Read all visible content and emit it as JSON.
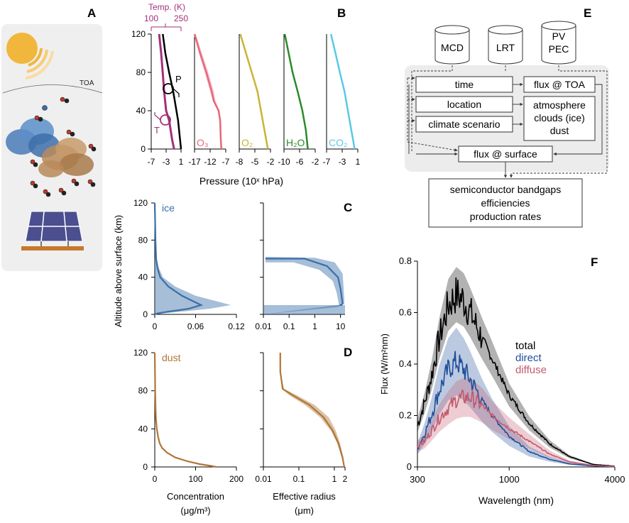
{
  "panel_letters": {
    "A": "A",
    "B": "B",
    "C": "C",
    "D": "D",
    "E": "E",
    "F": "F"
  },
  "colors": {
    "black": "#000000",
    "temp": "#a3307a",
    "o3": "#e8677a",
    "o2": "#c9b436",
    "h2o": "#2a8a2a",
    "co2": "#5bc8e6",
    "ice": "#3a6fa8",
    "dust": "#b07636",
    "direct": "#1f4e9a",
    "diffuse": "#c25a6e",
    "panel_bg": "#efefef",
    "box_bg": "#ececec"
  },
  "panel_A": {
    "toa_label": "TOA",
    "icons": [
      "sun-icon",
      "cloud-icon",
      "molecule-icon",
      "solar-panel-icon"
    ]
  },
  "shared": {
    "altitude_label": "Altitude above surface (km)"
  },
  "chart_data": [
    {
      "id": "B",
      "type": "line",
      "ylim": [
        0,
        120
      ],
      "yticks": [
        "0",
        "40",
        "80",
        "120"
      ],
      "xlabel": "Pressure (10ˣ hPa)",
      "temp_axis": {
        "title": "Temp. (K)",
        "ticks": [
          "100",
          "250"
        ],
        "xlim": [
          100,
          250
        ]
      },
      "markers": {
        "P": "P",
        "T": "T"
      },
      "subplots": [
        {
          "name": "",
          "ticks": [
            "-7",
            "-3",
            "1"
          ],
          "xlim": [
            -7,
            1
          ],
          "series": [
            {
              "name": "P",
              "color": "#000000",
              "x": [
                -3.9,
                -3.2,
                -2.2,
                -1.1,
                0.2,
                1.0
              ],
              "y": [
                120,
                100,
                80,
                60,
                30,
                0
              ]
            },
            {
              "name": "T",
              "color": "#a3307a",
              "temp": [
                140,
                150,
                158,
                165,
                175,
                190,
                205,
                215
              ],
              "y": [
                120,
                100,
                80,
                60,
                40,
                30,
                10,
                0
              ]
            }
          ]
        },
        {
          "name": "O₃",
          "ticks": [
            "-17",
            "-12",
            "-7"
          ],
          "xlim": [
            -17,
            -7
          ],
          "series": [
            {
              "name": "O₃",
              "color": "#e8677a",
              "x": [
                -17,
                -15.2,
                -13.2,
                -11.5,
                -10.8,
                -9.3,
                -8.8,
                -8.6,
                -8.4
              ],
              "y": [
                120,
                100,
                80,
                60,
                50,
                40,
                30,
                10,
                0
              ],
              "x_lo": [
                -17,
                -15.6,
                -13.8,
                -12.0,
                -11.2,
                -9.6,
                -9.0,
                -8.8,
                -8.6
              ],
              "x_hi": [
                -16.6,
                -14.6,
                -12.6,
                -10.8,
                -10.3,
                -9.0,
                -8.6,
                -8.4,
                -8.2
              ]
            }
          ]
        },
        {
          "name": "O₂",
          "ticks": [
            "-8",
            "-5",
            "-2"
          ],
          "xlim": [
            -8,
            -2
          ],
          "series": [
            {
              "name": "O₂",
              "color": "#c9b436",
              "x": [
                -7.8,
                -6.7,
                -5.6,
                -4.5,
                -3.5,
                -2.5
              ],
              "y": [
                120,
                100,
                80,
                60,
                30,
                0
              ]
            }
          ]
        },
        {
          "name": "H₂O",
          "ticks": [
            "-10",
            "-6",
            "-2"
          ],
          "xlim": [
            -10,
            -2
          ],
          "series": [
            {
              "name": "H₂O",
              "color": "#2a8a2a",
              "x": [
                -9.8,
                -8.8,
                -7.8,
                -6.5,
                -5.3,
                -4.4,
                -3.9
              ],
              "y": [
                120,
                100,
                80,
                60,
                40,
                20,
                0
              ]
            }
          ]
        },
        {
          "name": "CO₂",
          "ticks": [
            "-7",
            "-3",
            "1"
          ],
          "xlim": [
            -7,
            1
          ],
          "series": [
            {
              "name": "CO₂",
              "color": "#5bc8e6",
              "x": [
                -5.9,
                -4.7,
                -3.6,
                -2.4,
                -1.1,
                0.2
              ],
              "y": [
                120,
                100,
                80,
                60,
                30,
                0
              ]
            }
          ]
        }
      ]
    },
    {
      "id": "C",
      "type": "line",
      "series_label": "ice",
      "ylim": [
        0,
        120
      ],
      "yticks": [
        "0",
        "40",
        "80",
        "120"
      ],
      "subplots": [
        {
          "xscale": "linear",
          "xlim": [
            0,
            0.12
          ],
          "ticks": [
            "0",
            "0.06",
            "0.12"
          ],
          "series": [
            {
              "name": "ice",
              "color": "#3a6fa8",
              "x": [
                0,
                0.001,
                0.002,
                0.004,
                0.008,
                0.02,
                0.04,
                0.068,
                0.05,
                0.02,
                0.004,
                0
              ],
              "y": [
                120,
                80,
                60,
                50,
                40,
                30,
                20,
                10,
                6,
                3,
                1,
                0
              ],
              "x_hi": [
                0.001,
                0.002,
                0.003,
                0.006,
                0.012,
                0.03,
                0.06,
                0.112,
                0.08,
                0.04,
                0.01,
                0
              ]
            }
          ]
        },
        {
          "xscale": "log",
          "xlim": [
            0.01,
            15
          ],
          "ticks": [
            "0.01",
            "0.1",
            "1",
            "10"
          ],
          "tick_values": [
            0.01,
            0.1,
            1,
            10
          ],
          "series": [
            {
              "name": "ice",
              "color": "#3a6fa8",
              "x": [
                0.012,
                0.4,
                3,
                8,
                10,
                12,
                11,
                9
              ],
              "y": [
                60,
                60,
                52,
                40,
                28,
                12,
                10,
                10
              ],
              "x_lo": [
                0.012,
                0.15,
                1.5,
                5,
                7,
                9,
                0.01,
                0.01
              ],
              "x_hi": [
                0.012,
                1.0,
                6,
                12,
                13,
                14,
                14,
                14
              ],
              "y_hi": [
                62,
                61,
                56,
                44,
                32,
                16,
                11,
                11
              ],
              "y_lo": [
                56,
                56,
                48,
                36,
                24,
                8,
                0,
                0
              ]
            }
          ]
        }
      ]
    },
    {
      "id": "D",
      "type": "line",
      "series_label": "dust",
      "ylim": [
        0,
        120
      ],
      "yticks": [
        "0",
        "40",
        "80",
        "120"
      ],
      "subplots": [
        {
          "xscale": "linear",
          "xlim": [
            0,
            200
          ],
          "ticks": [
            "0",
            "100",
            "200"
          ],
          "xlabel": "Concentration",
          "xunit": "(μg/m³)",
          "series": [
            {
              "name": "dust",
              "color": "#b07636",
              "x": [
                0,
                0.5,
                1,
                2,
                3,
                5,
                8,
                12,
                18,
                30,
                50,
                80,
                110,
                140,
                150
              ],
              "y": [
                120,
                100,
                80,
                60,
                50,
                40,
                32,
                25,
                20,
                15,
                10,
                6,
                3,
                1,
                0
              ]
            }
          ]
        },
        {
          "xscale": "log",
          "xlim": [
            0.01,
            2
          ],
          "ticks": [
            "0.01",
            "0.1",
            "1",
            "2"
          ],
          "tick_values": [
            0.01,
            0.1,
            1,
            2
          ],
          "xlabel": "Effective radius",
          "xunit": "(μm)",
          "series": [
            {
              "name": "dust",
              "color": "#b07636",
              "x": [
                0.03,
                0.03,
                0.035,
                0.07,
                0.2,
                0.5,
                0.9,
                1.3,
                1.7,
                1.9
              ],
              "y": [
                120,
                100,
                82,
                75,
                65,
                52,
                38,
                25,
                10,
                0
              ],
              "x_lo": [
                0.03,
                0.03,
                0.033,
                0.055,
                0.15,
                0.4,
                0.8,
                1.2,
                1.6,
                1.9
              ],
              "x_hi": [
                0.03,
                0.03,
                0.038,
                0.09,
                0.28,
                0.7,
                1.1,
                1.45,
                1.8,
                1.9
              ]
            }
          ]
        }
      ]
    },
    {
      "id": "F",
      "type": "line",
      "xscale": "log",
      "xlim": [
        300,
        4000
      ],
      "ylim": [
        0,
        0.8
      ],
      "xticks": [
        "300",
        "1000",
        "4000"
      ],
      "xtick_values": [
        300,
        1000,
        4000
      ],
      "yticks": [
        "0",
        "0.2",
        "0.4",
        "0.6",
        "0.8"
      ],
      "ytick_values": [
        0,
        0.2,
        0.4,
        0.6,
        0.8
      ],
      "xlabel": "Wavelength (nm)",
      "ylabel": "Flux (W/m²nm)",
      "legend": [
        "total",
        "direct",
        "diffuse"
      ],
      "series": [
        {
          "name": "total",
          "color": "#000000",
          "x": [
            300,
            330,
            360,
            400,
            450,
            500,
            550,
            600,
            700,
            800,
            1000,
            1300,
            1700,
            2200,
            3000,
            4000
          ],
          "y": [
            0.16,
            0.25,
            0.35,
            0.5,
            0.63,
            0.67,
            0.65,
            0.6,
            0.5,
            0.42,
            0.28,
            0.17,
            0.09,
            0.04,
            0.01,
            0.003
          ],
          "band": 0.04
        },
        {
          "name": "direct",
          "color": "#1f4e9a",
          "x": [
            300,
            330,
            360,
            400,
            450,
            500,
            550,
            600,
            700,
            800,
            1000,
            1300,
            1700,
            2200,
            3000,
            4000
          ],
          "y": [
            0.07,
            0.13,
            0.2,
            0.3,
            0.38,
            0.41,
            0.38,
            0.34,
            0.26,
            0.2,
            0.12,
            0.06,
            0.03,
            0.012,
            0.004,
            0.001
          ],
          "band": 0.08
        },
        {
          "name": "diffuse",
          "color": "#c25a6e",
          "x": [
            300,
            330,
            360,
            400,
            450,
            500,
            550,
            600,
            700,
            800,
            1000,
            1300,
            1700,
            2200,
            3000,
            4000
          ],
          "y": [
            0.08,
            0.1,
            0.14,
            0.19,
            0.23,
            0.26,
            0.27,
            0.27,
            0.24,
            0.2,
            0.15,
            0.1,
            0.05,
            0.02,
            0.006,
            0.002
          ],
          "band": 0.07
        }
      ]
    }
  ],
  "panel_E": {
    "sources": [
      "MCD",
      "LRT",
      "PV\nPEC"
    ],
    "inputs": [
      "time",
      "location",
      "climate scenario"
    ],
    "toa": "flux @ TOA",
    "atmosphere": [
      "atmosphere",
      "clouds (ice)",
      "dust"
    ],
    "surface": "flux @ surface",
    "outputs": [
      "semiconductor bandgaps",
      "efficiencies",
      "production rates"
    ]
  }
}
